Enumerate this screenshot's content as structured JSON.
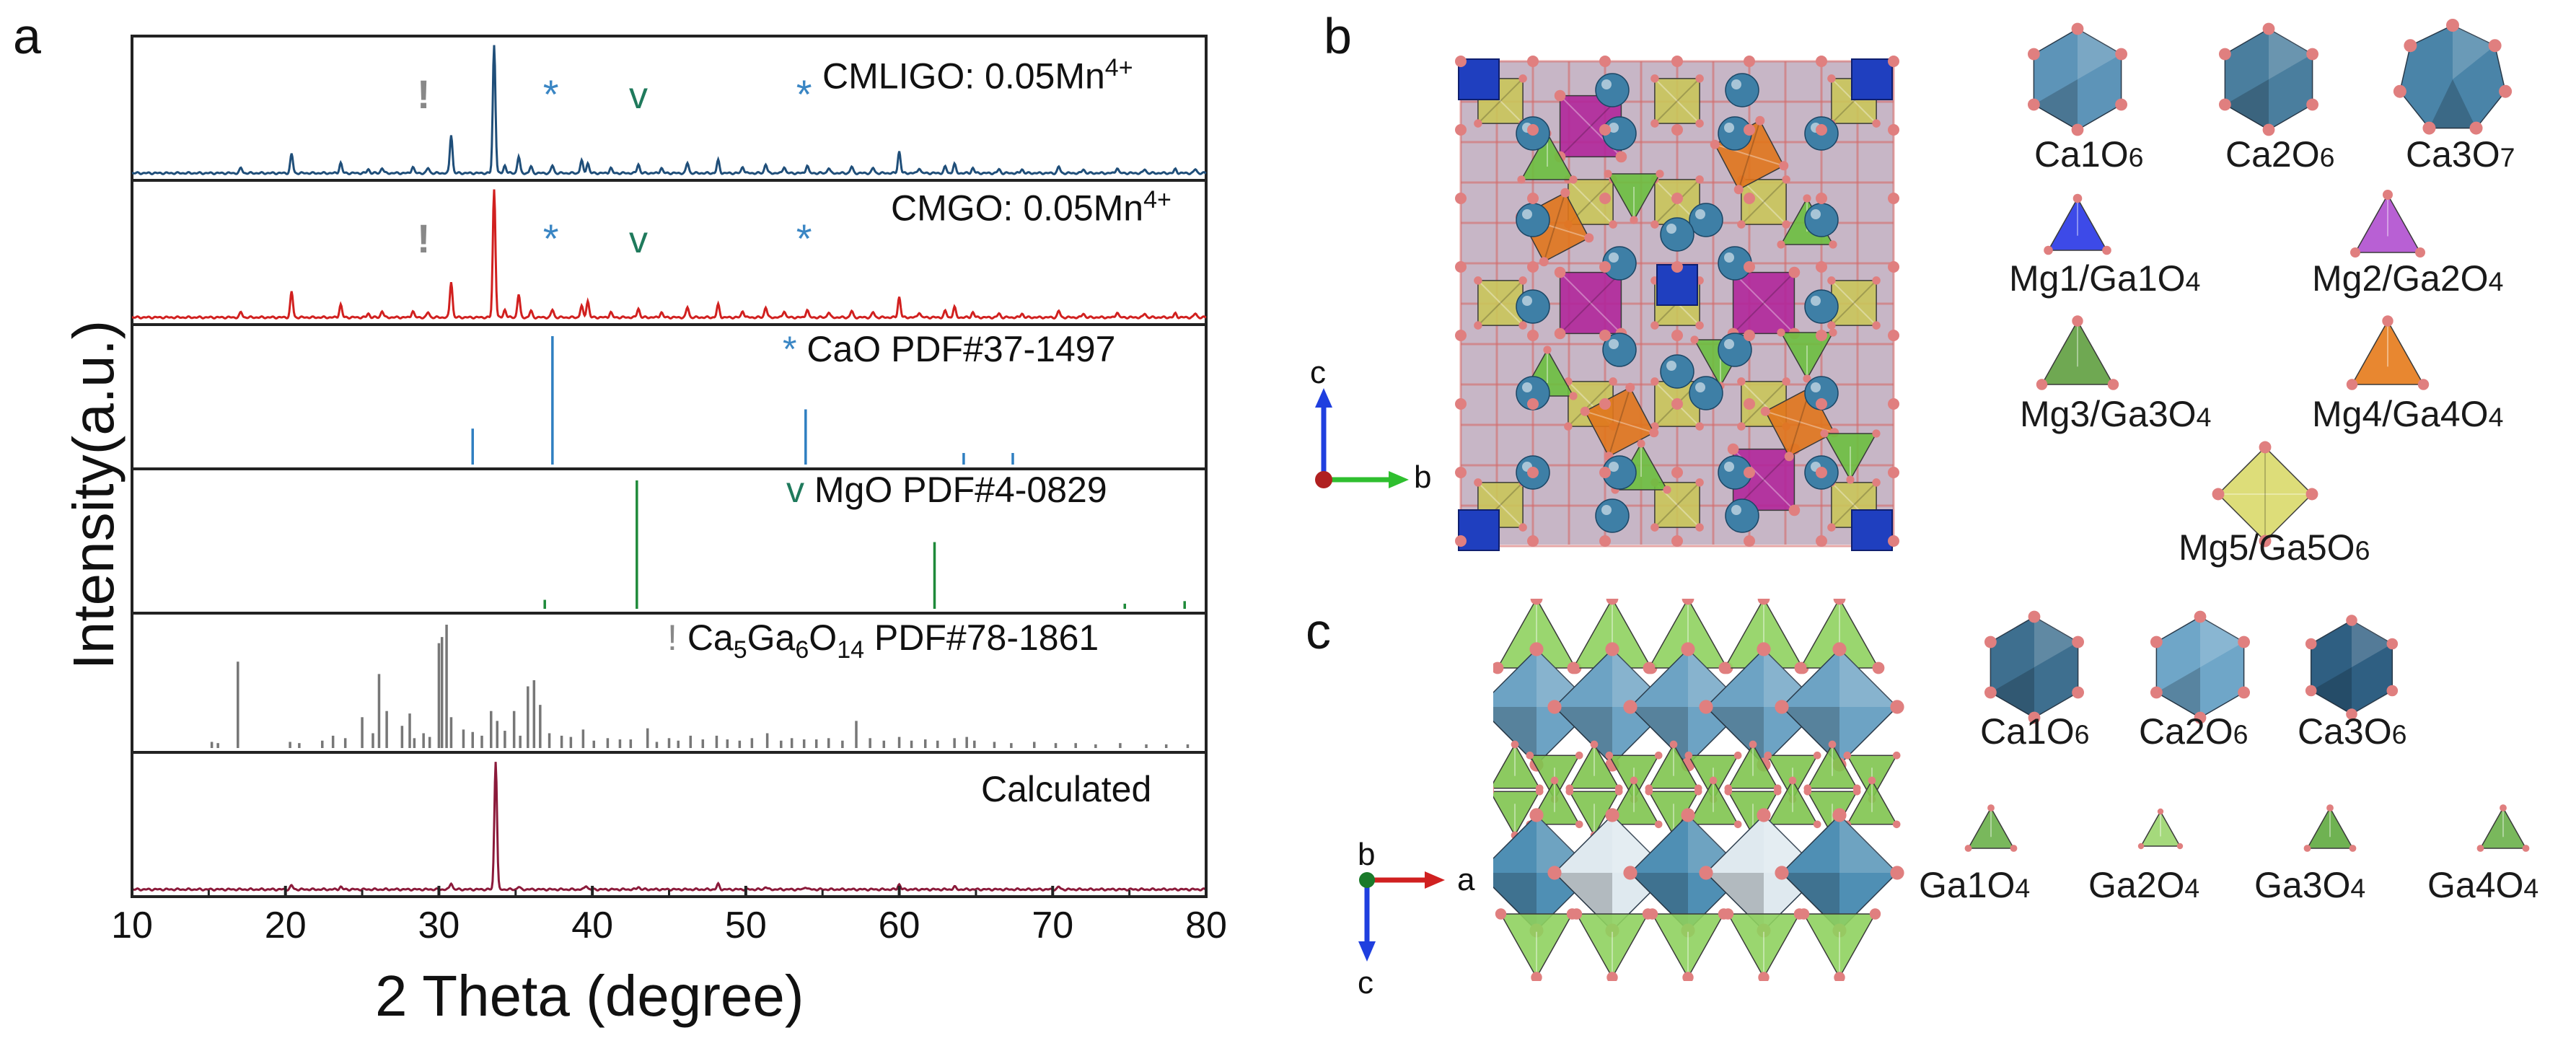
{
  "figure": {
    "panel_a_label": "a",
    "panel_b_label": "b",
    "panel_c_label": "c"
  },
  "chart_data": {
    "type": "line",
    "xlabel": "2 Theta (degree)",
    "ylabel": "Intensity(a.u.)",
    "xlim": [
      10,
      80
    ],
    "xticks": [
      "10",
      "20",
      "30",
      "40",
      "50",
      "60",
      "70",
      "80"
    ],
    "grid": false,
    "panels": [
      {
        "name": "CMLIGO: 0.05Mn",
        "sup": "4+",
        "color": "#1f4e79",
        "kind": "line",
        "peaks": [
          [
            17.1,
            0.04
          ],
          [
            20.4,
            0.15
          ],
          [
            23.6,
            0.08
          ],
          [
            25.4,
            0.03
          ],
          [
            26.3,
            0.04
          ],
          [
            28.3,
            0.05
          ],
          [
            29.3,
            0.04
          ],
          [
            30.8,
            0.3
          ],
          [
            33.6,
            1.0
          ],
          [
            34.3,
            0.06
          ],
          [
            35.2,
            0.13
          ],
          [
            36.0,
            0.05
          ],
          [
            37.4,
            0.06
          ],
          [
            39.3,
            0.1
          ],
          [
            39.7,
            0.08
          ],
          [
            41.2,
            0.04
          ],
          [
            43.0,
            0.07
          ],
          [
            44.5,
            0.04
          ],
          [
            46.2,
            0.08
          ],
          [
            48.2,
            0.1
          ],
          [
            49.8,
            0.05
          ],
          [
            51.3,
            0.07
          ],
          [
            52.5,
            0.05
          ],
          [
            54.0,
            0.06
          ],
          [
            55.4,
            0.04
          ],
          [
            56.9,
            0.05
          ],
          [
            58.3,
            0.04
          ],
          [
            60.0,
            0.17
          ],
          [
            61.3,
            0.04
          ],
          [
            63.0,
            0.05
          ],
          [
            63.6,
            0.07
          ],
          [
            64.8,
            0.04
          ],
          [
            66.5,
            0.03
          ],
          [
            68.0,
            0.03
          ],
          [
            70.4,
            0.05
          ],
          [
            72.0,
            0.03
          ],
          [
            74.2,
            0.04
          ],
          [
            76.0,
            0.03
          ],
          [
            78.0,
            0.03
          ],
          [
            79.3,
            0.03
          ]
        ],
        "markers": [
          {
            "symbol": "!",
            "x": 29.0,
            "color": "#888888"
          },
          {
            "symbol": "*",
            "x": 37.3,
            "color": "#3a86c4"
          },
          {
            "symbol": "v",
            "x": 43.0,
            "color": "#1f7a5c"
          },
          {
            "symbol": "*",
            "x": 53.8,
            "color": "#3a86c4"
          }
        ]
      },
      {
        "name": "CMGO: 0.05Mn",
        "sup": "4+",
        "color": "#d1201f",
        "kind": "line",
        "peaks": [
          [
            17.1,
            0.04
          ],
          [
            20.4,
            0.2
          ],
          [
            23.6,
            0.1
          ],
          [
            25.4,
            0.03
          ],
          [
            26.3,
            0.05
          ],
          [
            28.3,
            0.05
          ],
          [
            29.3,
            0.04
          ],
          [
            30.8,
            0.28
          ],
          [
            33.6,
            1.0
          ],
          [
            34.3,
            0.06
          ],
          [
            35.2,
            0.18
          ],
          [
            36.0,
            0.05
          ],
          [
            37.4,
            0.06
          ],
          [
            39.3,
            0.09
          ],
          [
            39.7,
            0.13
          ],
          [
            41.2,
            0.04
          ],
          [
            43.0,
            0.07
          ],
          [
            44.5,
            0.04
          ],
          [
            46.2,
            0.08
          ],
          [
            48.2,
            0.1
          ],
          [
            49.8,
            0.05
          ],
          [
            51.3,
            0.08
          ],
          [
            52.5,
            0.05
          ],
          [
            54.0,
            0.06
          ],
          [
            55.4,
            0.04
          ],
          [
            56.9,
            0.05
          ],
          [
            58.3,
            0.04
          ],
          [
            60.0,
            0.16
          ],
          [
            61.3,
            0.04
          ],
          [
            63.0,
            0.05
          ],
          [
            63.6,
            0.08
          ],
          [
            64.8,
            0.04
          ],
          [
            66.5,
            0.03
          ],
          [
            68.0,
            0.03
          ],
          [
            70.4,
            0.05
          ],
          [
            72.0,
            0.03
          ],
          [
            74.2,
            0.04
          ],
          [
            76.0,
            0.03
          ],
          [
            78.0,
            0.03
          ],
          [
            79.3,
            0.03
          ]
        ],
        "markers": [
          {
            "symbol": "!",
            "x": 29.0,
            "color": "#888888"
          },
          {
            "symbol": "*",
            "x": 37.3,
            "color": "#3a86c4"
          },
          {
            "symbol": "v",
            "x": 43.0,
            "color": "#1f7a5c"
          },
          {
            "symbol": "*",
            "x": 53.8,
            "color": "#3a86c4"
          }
        ]
      },
      {
        "name": "CaO PDF#37-1497",
        "symbol": "*",
        "symbol_color": "#3a86c4",
        "color": "#2f7fc1",
        "kind": "sticks",
        "peaks": [
          [
            32.2,
            0.28
          ],
          [
            37.4,
            1.0
          ],
          [
            53.9,
            0.43
          ],
          [
            64.2,
            0.09
          ],
          [
            67.4,
            0.09
          ]
        ]
      },
      {
        "name": "MgO PDF#4-0829",
        "symbol": "v",
        "symbol_color": "#1f7a5c",
        "color": "#1f8a3a",
        "kind": "sticks",
        "peaks": [
          [
            36.9,
            0.07
          ],
          [
            42.9,
            1.0
          ],
          [
            62.3,
            0.52
          ],
          [
            74.7,
            0.04
          ],
          [
            78.6,
            0.06
          ]
        ]
      },
      {
        "name_main": "Ca",
        "name_sub1": "5",
        "name_mid": "Ga",
        "name_sub2": "6",
        "name_end": "O",
        "name_sub3": "14",
        "name_tail": " PDF#78-1861",
        "symbol": "!",
        "symbol_color": "#888888",
        "color": "#777777",
        "kind": "sticks",
        "peaks": [
          [
            15.2,
            0.05
          ],
          [
            15.6,
            0.04
          ],
          [
            16.9,
            0.7
          ],
          [
            20.3,
            0.05
          ],
          [
            20.9,
            0.04
          ],
          [
            22.4,
            0.06
          ],
          [
            23.1,
            0.1
          ],
          [
            23.9,
            0.08
          ],
          [
            25.0,
            0.25
          ],
          [
            25.7,
            0.12
          ],
          [
            26.1,
            0.6
          ],
          [
            26.6,
            0.3
          ],
          [
            27.6,
            0.18
          ],
          [
            28.1,
            0.28
          ],
          [
            28.4,
            0.08
          ],
          [
            29.0,
            0.12
          ],
          [
            29.4,
            0.09
          ],
          [
            30.0,
            0.85
          ],
          [
            30.2,
            0.9
          ],
          [
            30.5,
            1.0
          ],
          [
            30.8,
            0.25
          ],
          [
            31.6,
            0.15
          ],
          [
            32.2,
            0.13
          ],
          [
            32.8,
            0.1
          ],
          [
            33.4,
            0.3
          ],
          [
            33.8,
            0.22
          ],
          [
            34.3,
            0.14
          ],
          [
            34.9,
            0.3
          ],
          [
            35.3,
            0.1
          ],
          [
            35.8,
            0.5
          ],
          [
            36.2,
            0.55
          ],
          [
            36.6,
            0.35
          ],
          [
            37.2,
            0.12
          ],
          [
            38.0,
            0.1
          ],
          [
            38.6,
            0.09
          ],
          [
            39.4,
            0.15
          ],
          [
            40.1,
            0.06
          ],
          [
            41.0,
            0.08
          ],
          [
            41.8,
            0.07
          ],
          [
            42.5,
            0.07
          ],
          [
            43.6,
            0.16
          ],
          [
            44.2,
            0.05
          ],
          [
            45.0,
            0.08
          ],
          [
            45.6,
            0.06
          ],
          [
            46.4,
            0.1
          ],
          [
            47.2,
            0.07
          ],
          [
            48.1,
            0.1
          ],
          [
            48.8,
            0.07
          ],
          [
            49.6,
            0.06
          ],
          [
            50.4,
            0.08
          ],
          [
            51.4,
            0.12
          ],
          [
            52.3,
            0.06
          ],
          [
            53.0,
            0.08
          ],
          [
            53.8,
            0.07
          ],
          [
            54.6,
            0.07
          ],
          [
            55.4,
            0.08
          ],
          [
            56.3,
            0.06
          ],
          [
            57.2,
            0.22
          ],
          [
            58.1,
            0.08
          ],
          [
            59.0,
            0.06
          ],
          [
            60.0,
            0.09
          ],
          [
            60.8,
            0.06
          ],
          [
            61.7,
            0.07
          ],
          [
            62.5,
            0.06
          ],
          [
            63.6,
            0.08
          ],
          [
            64.4,
            0.09
          ],
          [
            64.9,
            0.06
          ],
          [
            66.2,
            0.05
          ],
          [
            67.3,
            0.04
          ],
          [
            68.8,
            0.05
          ],
          [
            70.2,
            0.04
          ],
          [
            71.5,
            0.04
          ],
          [
            72.8,
            0.03
          ],
          [
            74.4,
            0.04
          ],
          [
            76.1,
            0.03
          ],
          [
            77.4,
            0.03
          ],
          [
            78.8,
            0.03
          ]
        ]
      },
      {
        "name": "Calculated",
        "color": "#8b1a3a",
        "kind": "line",
        "peaks": [
          [
            20.4,
            0.03
          ],
          [
            23.6,
            0.02
          ],
          [
            30.8,
            0.05
          ],
          [
            33.7,
            1.0
          ],
          [
            35.2,
            0.02
          ],
          [
            39.6,
            0.03
          ],
          [
            43.0,
            0.02
          ],
          [
            48.2,
            0.04
          ],
          [
            51.3,
            0.02
          ],
          [
            53.9,
            0.02
          ],
          [
            60.0,
            0.04
          ],
          [
            63.6,
            0.02
          ],
          [
            70.4,
            0.02
          ]
        ]
      }
    ]
  },
  "panel_b": {
    "axis_up": "c",
    "axis_right": "b",
    "polyhedra": [
      {
        "main": "Ca1O",
        "sub": "6"
      },
      {
        "main": "Ca2O",
        "sub": "6"
      },
      {
        "main": "Ca3O",
        "sub": "7"
      },
      {
        "main": "Mg1/Ga1O",
        "sub": "4"
      },
      {
        "main": "Mg2/Ga2O",
        "sub": "4"
      },
      {
        "main": "Mg3/Ga3O",
        "sub": "4"
      },
      {
        "main": "Mg4/Ga4O",
        "sub": "4"
      },
      {
        "main": "Mg5/Ga5O",
        "sub": "6"
      }
    ],
    "colors": {
      "blue": "#1f3fbf",
      "magenta": "#b0279a",
      "green": "#6cbf3f",
      "orange": "#e0761c",
      "olive": "#c9c55a",
      "teal": "#3e7fa6",
      "oxygen": "#e07f7f"
    }
  },
  "panel_c": {
    "axis_right": "a",
    "axis_down": "c",
    "axis_origin": "b",
    "polyhedra": [
      {
        "main": "Ca1O",
        "sub": "6"
      },
      {
        "main": "Ca2O",
        "sub": "6"
      },
      {
        "main": "Ca3O",
        "sub": "6"
      },
      {
        "main": "Ga1O",
        "sub": "4"
      },
      {
        "main": "Ga2O",
        "sub": "4"
      },
      {
        "main": "Ga3O",
        "sub": "4"
      },
      {
        "main": "Ga4O",
        "sub": "4"
      }
    ]
  }
}
